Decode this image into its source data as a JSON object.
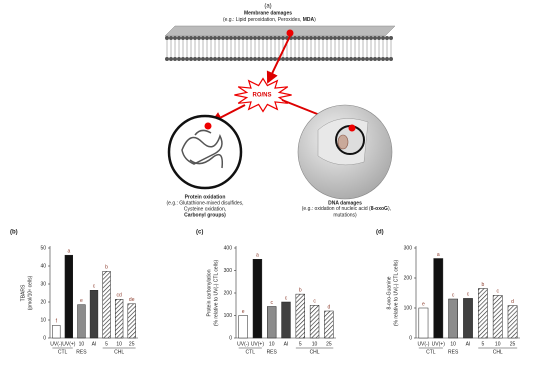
{
  "diagram": {
    "panel_label": "(a)",
    "membrane_title": "Membrane damages",
    "membrane_note": [
      "(e.g.: Lipid peroxidation, Peroxides, ",
      "MDA",
      ")"
    ],
    "center_label": "RO/NS",
    "protein_title": "Protein oxidation",
    "protein_note": [
      "(e.g.: Glutathione-mixed disulfides,",
      "Cysteine oxidation,",
      "Carbonyl groups)"
    ],
    "dna_title": "DNA damages",
    "dna_note": [
      [
        "(e.g.: oxidation of nucleic acid (",
        "8-oxoG",
        "),"
      ],
      "mutations)"
    ]
  },
  "chart_data": [
    {
      "type": "bar",
      "panel_label": "(b)",
      "ylabel": [
        "TBARS",
        "(pmol/10⁶ cells)"
      ],
      "categories": [
        "UV(-)",
        "UV(+)",
        "10",
        "AI",
        "5",
        "10",
        "25"
      ],
      "groups": [
        {
          "name": "CTL",
          "span": [
            0,
            1
          ]
        },
        {
          "name": "RES",
          "span": [
            2,
            2
          ]
        },
        {
          "name": "CHL",
          "span": [
            4,
            6
          ]
        }
      ],
      "values": [
        7,
        46,
        18.5,
        26.5,
        37,
        21.5,
        19
      ],
      "letters": [
        "f",
        "a",
        "e",
        "c",
        "b",
        "cd",
        "de"
      ],
      "fills": [
        "#ffffff",
        "#111111",
        "#8c8c8c",
        "#404040",
        "hatched",
        "hatched",
        "hatched"
      ],
      "ylim": [
        0,
        50
      ],
      "yticks": [
        0,
        10,
        20,
        30,
        40,
        50
      ]
    },
    {
      "type": "bar",
      "panel_label": "(c)",
      "ylabel": [
        "Protein carbonylation",
        "(% relative to UV(-) CTL cells)"
      ],
      "categories": [
        "UV(-)",
        "UV(+)",
        "10",
        "AI",
        "5",
        "10",
        "25"
      ],
      "groups": [
        {
          "name": "CTL",
          "span": [
            0,
            1
          ]
        },
        {
          "name": "RES",
          "span": [
            2,
            2
          ]
        },
        {
          "name": "CHL",
          "span": [
            4,
            6
          ]
        }
      ],
      "values": [
        100,
        350,
        140,
        160,
        195,
        145,
        120
      ],
      "letters": [
        "e",
        "a",
        "c",
        "c",
        "b",
        "c",
        "d"
      ],
      "fills": [
        "#ffffff",
        "#111111",
        "#8c8c8c",
        "#404040",
        "hatched",
        "hatched",
        "hatched"
      ],
      "ylim": [
        0,
        400
      ],
      "yticks": [
        0,
        100,
        200,
        300,
        400
      ]
    },
    {
      "type": "bar",
      "panel_label": "(d)",
      "ylabel": [
        "8-oxo-Guanine",
        "(% relative to UV(-) CTL cells)"
      ],
      "categories": [
        "UV(-)",
        "UV(+)",
        "10",
        "AI",
        "5",
        "10",
        "25"
      ],
      "groups": [
        {
          "name": "CTL",
          "span": [
            0,
            1
          ]
        },
        {
          "name": "RES",
          "span": [
            2,
            2
          ]
        },
        {
          "name": "CHL",
          "span": [
            4,
            6
          ]
        }
      ],
      "values": [
        100,
        265,
        130,
        132,
        165,
        142,
        108
      ],
      "letters": [
        "e",
        "a",
        "c",
        "c",
        "b",
        "c",
        "d"
      ],
      "fills": [
        "#ffffff",
        "#111111",
        "#8c8c8c",
        "#404040",
        "hatched",
        "hatched",
        "hatched"
      ],
      "ylim": [
        0,
        300
      ],
      "yticks": [
        0,
        100,
        200,
        300
      ]
    }
  ]
}
